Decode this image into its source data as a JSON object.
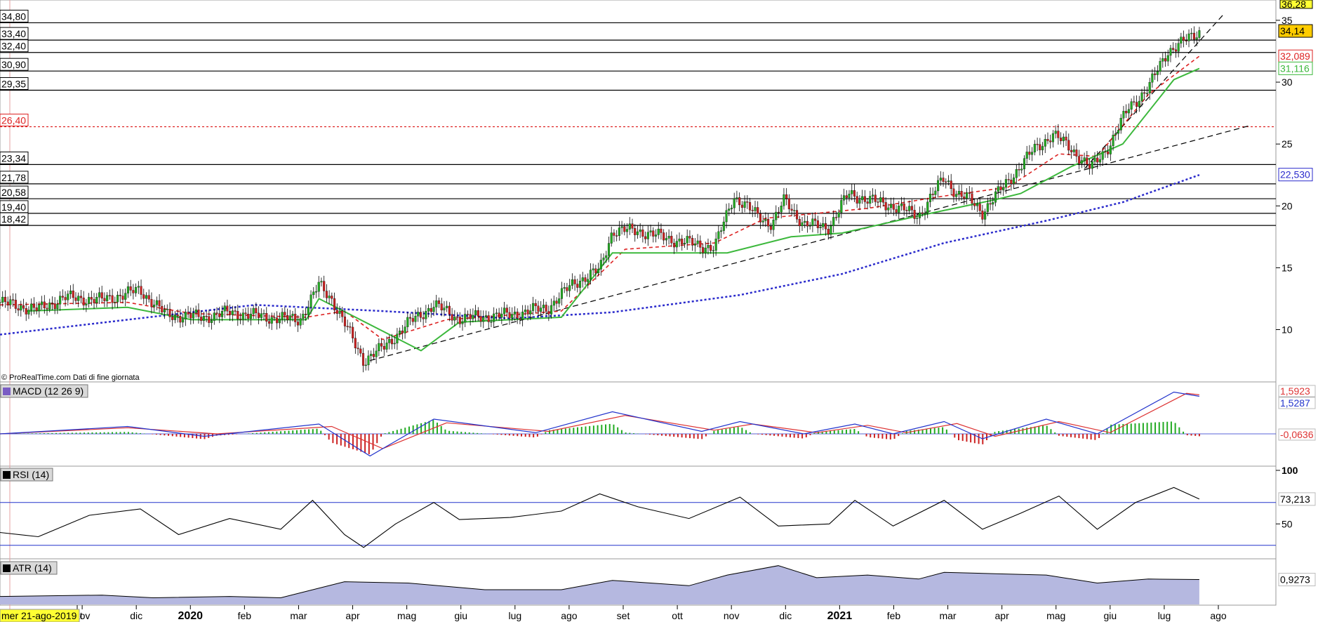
{
  "chart_data": {
    "type": "line",
    "watermark": "© ProRealTime.com  Dati di fine giornata",
    "hover_date": "mer 21-ago-2019",
    "colors": {
      "candle_up": "#22aa22",
      "candle_down": "#cc2222",
      "sar_green": "#3cb83c",
      "sar_red": "#cc5555",
      "ma_blue": "#2b2bcc",
      "ma_red": "#dd2222",
      "trend": "#000000",
      "macd_line": "#2233cc",
      "signal_line": "#dd3333",
      "atr_fill": "#b5b8e0"
    },
    "time_axis": {
      "labels": [
        "ott",
        "nov",
        "dic",
        "2020",
        "feb",
        "mar",
        "apr",
        "mag",
        "giu",
        "lug",
        "ago",
        "set",
        "ott",
        "nov",
        "dic",
        "2021",
        "feb",
        "mar",
        "apr",
        "mag",
        "giu",
        "lug",
        "ago"
      ],
      "year_labels": [
        "2020",
        "2021"
      ]
    },
    "price_panel": {
      "yticks": [
        10,
        15,
        20,
        25,
        30,
        35
      ],
      "ylim": [
        6,
        36.3
      ],
      "top_right_label": "36,28",
      "horizontal_levels": [
        {
          "value": 34.8,
          "label": "34,80"
        },
        {
          "value": 33.4,
          "label": "33,40"
        },
        {
          "value": 32.4,
          "label": "32,40"
        },
        {
          "value": 30.9,
          "label": "30,90"
        },
        {
          "value": 29.35,
          "label": "29,35"
        },
        {
          "value": 23.34,
          "label": "23,34"
        },
        {
          "value": 21.78,
          "label": "21,78"
        },
        {
          "value": 20.58,
          "label": "20,58"
        },
        {
          "value": 19.4,
          "label": "19,40"
        },
        {
          "value": 18.42,
          "label": "18,42"
        }
      ],
      "dashed_level": {
        "value": 26.4,
        "label": "26,40"
      },
      "right_labels": [
        {
          "value": 34.14,
          "label": "34,14",
          "kind": "price"
        },
        {
          "value": 32.089,
          "label": "32,089",
          "kind": "ma_red"
        },
        {
          "value": 31.116,
          "label": "31,116",
          "kind": "sar"
        },
        {
          "value": 22.53,
          "label": "22,530",
          "kind": "ma_blue"
        }
      ],
      "price_series": [
        {
          "x": 0,
          "y": 12.2
        },
        {
          "x": 0.03,
          "y": 11.6
        },
        {
          "x": 0.05,
          "y": 12.6
        },
        {
          "x": 0.08,
          "y": 12.4
        },
        {
          "x": 0.11,
          "y": 13.2
        },
        {
          "x": 0.13,
          "y": 11.2
        },
        {
          "x": 0.16,
          "y": 11.0
        },
        {
          "x": 0.18,
          "y": 11.4
        },
        {
          "x": 0.21,
          "y": 11.0
        },
        {
          "x": 0.235,
          "y": 10.8
        },
        {
          "x": 0.25,
          "y": 13.6
        },
        {
          "x": 0.26,
          "y": 12.5
        },
        {
          "x": 0.275,
          "y": 9.5
        },
        {
          "x": 0.285,
          "y": 7.5
        },
        {
          "x": 0.3,
          "y": 8.5
        },
        {
          "x": 0.32,
          "y": 10.5
        },
        {
          "x": 0.34,
          "y": 12.0
        },
        {
          "x": 0.36,
          "y": 10.9
        },
        {
          "x": 0.4,
          "y": 11.2
        },
        {
          "x": 0.43,
          "y": 11.8
        },
        {
          "x": 0.45,
          "y": 13.8
        },
        {
          "x": 0.47,
          "y": 14.8
        },
        {
          "x": 0.48,
          "y": 18.0
        },
        {
          "x": 0.5,
          "y": 18.0
        },
        {
          "x": 0.53,
          "y": 17.2
        },
        {
          "x": 0.56,
          "y": 16.6
        },
        {
          "x": 0.575,
          "y": 20.8
        },
        {
          "x": 0.59,
          "y": 19.5
        },
        {
          "x": 0.605,
          "y": 18.5
        },
        {
          "x": 0.615,
          "y": 20.5
        },
        {
          "x": 0.63,
          "y": 18.5
        },
        {
          "x": 0.65,
          "y": 18.3
        },
        {
          "x": 0.665,
          "y": 21.0
        },
        {
          "x": 0.68,
          "y": 20.5
        },
        {
          "x": 0.7,
          "y": 20.0
        },
        {
          "x": 0.72,
          "y": 19.2
        },
        {
          "x": 0.74,
          "y": 22.3
        },
        {
          "x": 0.75,
          "y": 21.0
        },
        {
          "x": 0.76,
          "y": 20.5
        },
        {
          "x": 0.77,
          "y": 19.5
        },
        {
          "x": 0.79,
          "y": 22.0
        },
        {
          "x": 0.81,
          "y": 24.5
        },
        {
          "x": 0.825,
          "y": 25.8
        },
        {
          "x": 0.84,
          "y": 24.6
        },
        {
          "x": 0.855,
          "y": 23.0
        },
        {
          "x": 0.87,
          "y": 25.0
        },
        {
          "x": 0.885,
          "y": 28.0
        },
        {
          "x": 0.9,
          "y": 29.5
        },
        {
          "x": 0.915,
          "y": 32.5
        },
        {
          "x": 0.93,
          "y": 33.4
        },
        {
          "x": 0.94,
          "y": 34.1
        }
      ],
      "sar_series": [
        {
          "x": 0.02,
          "y": 11.5
        },
        {
          "x": 0.1,
          "y": 11.8
        },
        {
          "x": 0.15,
          "y": 10.8
        },
        {
          "x": 0.24,
          "y": 10.8
        },
        {
          "x": 0.25,
          "y": 12.5
        },
        {
          "x": 0.33,
          "y": 8.3
        },
        {
          "x": 0.36,
          "y": 10.6
        },
        {
          "x": 0.44,
          "y": 11.0
        },
        {
          "x": 0.48,
          "y": 16.2
        },
        {
          "x": 0.57,
          "y": 16.2
        },
        {
          "x": 0.62,
          "y": 17.5
        },
        {
          "x": 0.66,
          "y": 17.8
        },
        {
          "x": 0.72,
          "y": 19.2
        },
        {
          "x": 0.78,
          "y": 20.5
        },
        {
          "x": 0.8,
          "y": 21.0
        },
        {
          "x": 0.84,
          "y": 23.2
        },
        {
          "x": 0.88,
          "y": 25.0
        },
        {
          "x": 0.92,
          "y": 30.2
        },
        {
          "x": 0.94,
          "y": 31.1
        }
      ],
      "ma_red_series": [
        {
          "x": 0,
          "y": 12.0
        },
        {
          "x": 0.1,
          "y": 12.2
        },
        {
          "x": 0.15,
          "y": 11.3
        },
        {
          "x": 0.24,
          "y": 11.0
        },
        {
          "x": 0.27,
          "y": 11.5
        },
        {
          "x": 0.3,
          "y": 9.2
        },
        {
          "x": 0.35,
          "y": 10.8
        },
        {
          "x": 0.44,
          "y": 11.5
        },
        {
          "x": 0.49,
          "y": 16.5
        },
        {
          "x": 0.56,
          "y": 17.0
        },
        {
          "x": 0.6,
          "y": 19.0
        },
        {
          "x": 0.68,
          "y": 19.8
        },
        {
          "x": 0.74,
          "y": 20.8
        },
        {
          "x": 0.79,
          "y": 21.5
        },
        {
          "x": 0.83,
          "y": 24.2
        },
        {
          "x": 0.86,
          "y": 24.0
        },
        {
          "x": 0.9,
          "y": 29.0
        },
        {
          "x": 0.94,
          "y": 32.1
        }
      ],
      "ma_blue_series": [
        {
          "x": 0,
          "y": 9.6
        },
        {
          "x": 0.1,
          "y": 10.8
        },
        {
          "x": 0.2,
          "y": 12.0
        },
        {
          "x": 0.3,
          "y": 11.5
        },
        {
          "x": 0.4,
          "y": 10.9
        },
        {
          "x": 0.48,
          "y": 11.4
        },
        {
          "x": 0.58,
          "y": 12.8
        },
        {
          "x": 0.66,
          "y": 14.5
        },
        {
          "x": 0.74,
          "y": 17.0
        },
        {
          "x": 0.82,
          "y": 18.8
        },
        {
          "x": 0.88,
          "y": 20.3
        },
        {
          "x": 0.94,
          "y": 22.5
        }
      ],
      "trend_lines": [
        {
          "from": {
            "x": 0.29,
            "y": 7.5
          },
          "to": {
            "x": 0.98,
            "y": 26.5
          }
        },
        {
          "from": {
            "x": 0.85,
            "y": 23.0
          },
          "to": {
            "x": 0.96,
            "y": 35.6
          }
        }
      ]
    },
    "macd_panel": {
      "title": "MACD (12 26 9)",
      "labels": [
        {
          "label": "1,5923",
          "kind": "signal"
        },
        {
          "label": "1,5287",
          "kind": "macd"
        },
        {
          "label": "-0,0636",
          "kind": "hist"
        }
      ],
      "macd_series": [
        {
          "x": 0,
          "y": 0.0
        },
        {
          "x": 0.1,
          "y": 0.3
        },
        {
          "x": 0.16,
          "y": -0.1
        },
        {
          "x": 0.25,
          "y": 0.4
        },
        {
          "x": 0.29,
          "y": -0.9
        },
        {
          "x": 0.34,
          "y": 0.6
        },
        {
          "x": 0.42,
          "y": 0.05
        },
        {
          "x": 0.48,
          "y": 0.9
        },
        {
          "x": 0.55,
          "y": 0.1
        },
        {
          "x": 0.58,
          "y": 0.5
        },
        {
          "x": 0.63,
          "y": 0.0
        },
        {
          "x": 0.67,
          "y": 0.4
        },
        {
          "x": 0.7,
          "y": 0.0
        },
        {
          "x": 0.74,
          "y": 0.5
        },
        {
          "x": 0.77,
          "y": -0.2
        },
        {
          "x": 0.82,
          "y": 0.6
        },
        {
          "x": 0.86,
          "y": 0.0
        },
        {
          "x": 0.92,
          "y": 1.7
        },
        {
          "x": 0.94,
          "y": 1.53
        }
      ],
      "signal_series": [
        {
          "x": 0,
          "y": 0.0
        },
        {
          "x": 0.1,
          "y": 0.25
        },
        {
          "x": 0.17,
          "y": 0.0
        },
        {
          "x": 0.26,
          "y": 0.3
        },
        {
          "x": 0.3,
          "y": -0.6
        },
        {
          "x": 0.35,
          "y": 0.45
        },
        {
          "x": 0.43,
          "y": 0.1
        },
        {
          "x": 0.49,
          "y": 0.75
        },
        {
          "x": 0.56,
          "y": 0.15
        },
        {
          "x": 0.59,
          "y": 0.4
        },
        {
          "x": 0.64,
          "y": 0.05
        },
        {
          "x": 0.68,
          "y": 0.35
        },
        {
          "x": 0.71,
          "y": 0.05
        },
        {
          "x": 0.75,
          "y": 0.42
        },
        {
          "x": 0.78,
          "y": -0.1
        },
        {
          "x": 0.83,
          "y": 0.5
        },
        {
          "x": 0.87,
          "y": 0.05
        },
        {
          "x": 0.93,
          "y": 1.65
        },
        {
          "x": 0.94,
          "y": 1.59
        }
      ],
      "ylim": [
        -1.2,
        2.0
      ]
    },
    "rsi_panel": {
      "title": "RSI (14)",
      "yticks": [
        50,
        100
      ],
      "levels": [
        30,
        70
      ],
      "value_label": "73,213",
      "ylim": [
        20,
        100
      ],
      "series": [
        {
          "x": 0,
          "y": 42
        },
        {
          "x": 0.03,
          "y": 38
        },
        {
          "x": 0.07,
          "y": 58
        },
        {
          "x": 0.11,
          "y": 64
        },
        {
          "x": 0.14,
          "y": 40
        },
        {
          "x": 0.18,
          "y": 55
        },
        {
          "x": 0.22,
          "y": 45
        },
        {
          "x": 0.245,
          "y": 72
        },
        {
          "x": 0.27,
          "y": 40
        },
        {
          "x": 0.285,
          "y": 28
        },
        {
          "x": 0.31,
          "y": 50
        },
        {
          "x": 0.34,
          "y": 70
        },
        {
          "x": 0.36,
          "y": 54
        },
        {
          "x": 0.4,
          "y": 56
        },
        {
          "x": 0.44,
          "y": 62
        },
        {
          "x": 0.47,
          "y": 78
        },
        {
          "x": 0.5,
          "y": 66
        },
        {
          "x": 0.54,
          "y": 55
        },
        {
          "x": 0.58,
          "y": 75
        },
        {
          "x": 0.61,
          "y": 48
        },
        {
          "x": 0.65,
          "y": 50
        },
        {
          "x": 0.67,
          "y": 72
        },
        {
          "x": 0.7,
          "y": 48
        },
        {
          "x": 0.74,
          "y": 72
        },
        {
          "x": 0.77,
          "y": 45
        },
        {
          "x": 0.8,
          "y": 60
        },
        {
          "x": 0.83,
          "y": 76
        },
        {
          "x": 0.86,
          "y": 45
        },
        {
          "x": 0.89,
          "y": 70
        },
        {
          "x": 0.92,
          "y": 84
        },
        {
          "x": 0.94,
          "y": 73.2
        }
      ]
    },
    "atr_panel": {
      "title": "ATR (14)",
      "value_label": "0,9273",
      "ylim": [
        0,
        1.6
      ],
      "series": [
        {
          "x": 0,
          "y": 0.3
        },
        {
          "x": 0.08,
          "y": 0.35
        },
        {
          "x": 0.12,
          "y": 0.25
        },
        {
          "x": 0.18,
          "y": 0.3
        },
        {
          "x": 0.22,
          "y": 0.25
        },
        {
          "x": 0.27,
          "y": 0.85
        },
        {
          "x": 0.32,
          "y": 0.8
        },
        {
          "x": 0.38,
          "y": 0.55
        },
        {
          "x": 0.44,
          "y": 0.55
        },
        {
          "x": 0.48,
          "y": 0.9
        },
        {
          "x": 0.54,
          "y": 0.7
        },
        {
          "x": 0.57,
          "y": 1.1
        },
        {
          "x": 0.61,
          "y": 1.45
        },
        {
          "x": 0.64,
          "y": 1.0
        },
        {
          "x": 0.68,
          "y": 1.1
        },
        {
          "x": 0.72,
          "y": 0.95
        },
        {
          "x": 0.74,
          "y": 1.2
        },
        {
          "x": 0.78,
          "y": 1.15
        },
        {
          "x": 0.82,
          "y": 1.1
        },
        {
          "x": 0.86,
          "y": 0.8
        },
        {
          "x": 0.9,
          "y": 0.95
        },
        {
          "x": 0.94,
          "y": 0.93
        }
      ]
    }
  }
}
